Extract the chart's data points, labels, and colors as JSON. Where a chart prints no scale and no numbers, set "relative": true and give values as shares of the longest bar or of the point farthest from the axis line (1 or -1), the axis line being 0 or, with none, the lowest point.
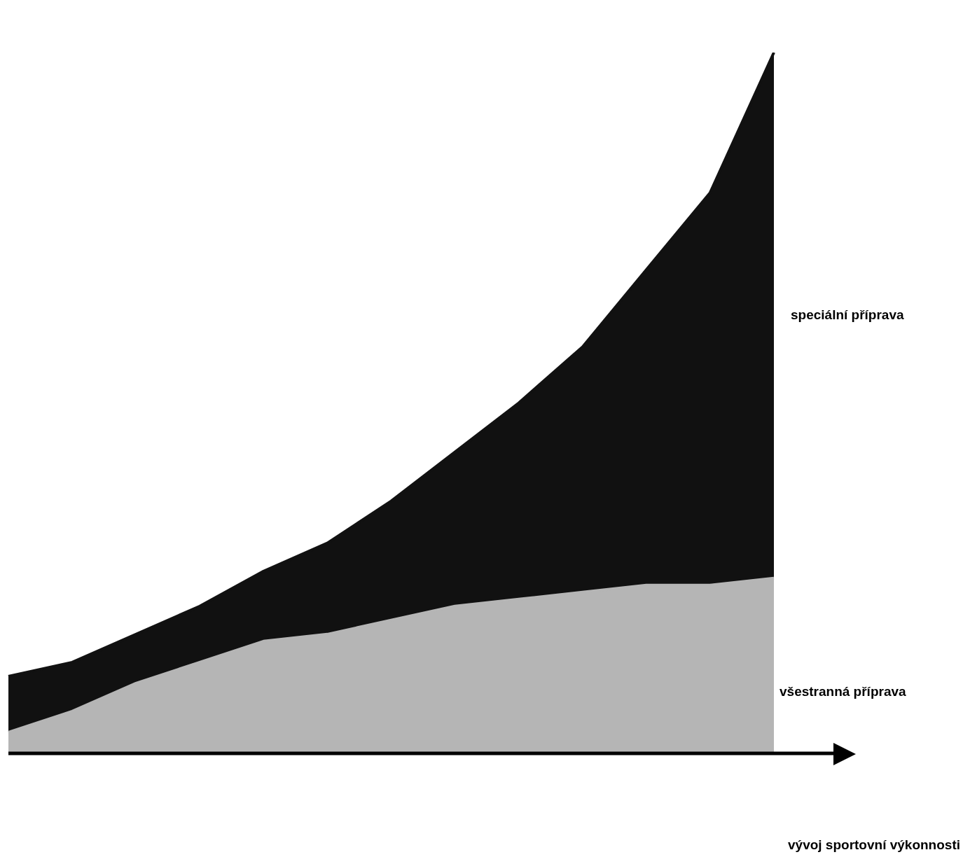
{
  "chart_data": {
    "type": "area",
    "annotations": [
      "vývoj sportovní výkonnosti"
    ],
    "relative": true,
    "stacked": true,
    "categories": [
      null,
      null,
      null,
      null,
      null,
      null,
      null,
      null,
      null,
      null,
      null,
      null,
      null
    ],
    "series": [
      {
        "name": "všestranná příprava",
        "color": "#b5b5b5",
        "values": [
          0.03,
          0.06,
          0.1,
          0.13,
          0.16,
          0.17,
          0.19,
          0.21,
          0.22,
          0.23,
          0.24,
          0.24,
          0.25
        ]
      },
      {
        "name": "speciální příprava",
        "color": "#111111",
        "values": [
          0.08,
          0.07,
          0.07,
          0.08,
          0.1,
          0.13,
          0.17,
          0.22,
          0.28,
          0.35,
          0.45,
          0.56,
          0.75
        ]
      }
    ]
  }
}
